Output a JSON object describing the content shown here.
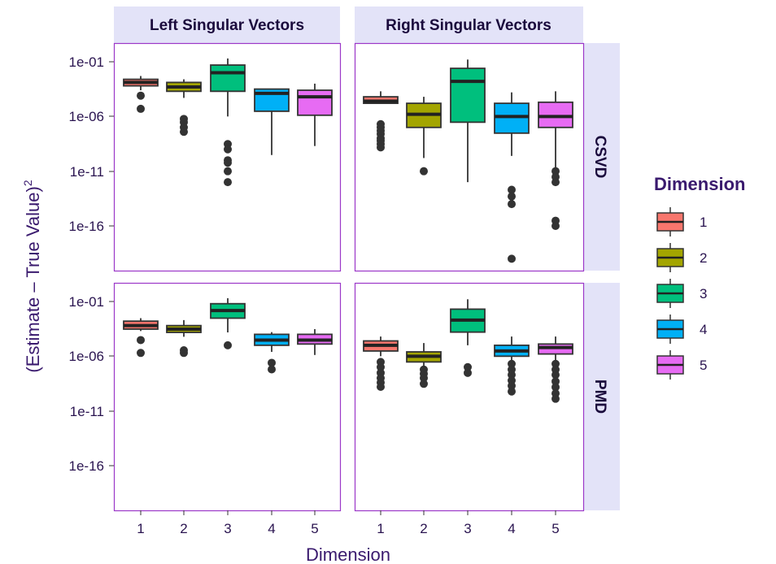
{
  "chart_data": {
    "type": "boxplot",
    "xlabel": "Dimension",
    "ylabel": "(Estimate – True Value)",
    "ylabel_superscript": "2",
    "y_scale": "log10",
    "ylim": [
      1e-20,
      0.2
    ],
    "y_ticks": [
      {
        "value": 0.1,
        "label": "1e-01"
      },
      {
        "value": 1e-06,
        "label": "1e-06"
      },
      {
        "value": 1e-11,
        "label": "1e-11"
      },
      {
        "value": 1e-16,
        "label": "1e-16"
      }
    ],
    "categories": [
      "1",
      "2",
      "3",
      "4",
      "5"
    ],
    "legend": {
      "title": "Dimension",
      "position": "right",
      "entries": [
        {
          "label": "1",
          "color": "#F8766D"
        },
        {
          "label": "2",
          "color": "#A3A500"
        },
        {
          "label": "3",
          "color": "#00BF7D"
        },
        {
          "label": "4",
          "color": "#00B0F6"
        },
        {
          "label": "5",
          "color": "#E76BF3"
        }
      ]
    },
    "column_facets": [
      "Left Singular Vectors",
      "Right Singular Vectors"
    ],
    "row_facets": [
      "CSVD",
      "PMD"
    ],
    "panels": [
      {
        "row": "CSVD",
        "col": "Left Singular Vectors",
        "boxes": [
          {
            "dim": "1",
            "whisker_low": 0.00025,
            "q1": 0.00063,
            "median": 0.0013,
            "q3": 0.0025,
            "whisker_high": 0.005,
            "outliers": [
              8e-05,
              5e-06
            ]
          },
          {
            "dim": "2",
            "whisker_low": 5e-05,
            "q1": 0.0002,
            "median": 0.0005,
            "q3": 0.0013,
            "whisker_high": 0.0025,
            "outliers": [
              6e-07,
              3e-07,
              1e-07,
              4e-08
            ]
          },
          {
            "dim": "3",
            "whisker_low": 1e-06,
            "q1": 0.0002,
            "median": 0.01,
            "q3": 0.05,
            "whisker_high": 0.2,
            "outliers": [
              3e-09,
              1e-09,
              1e-10,
              6e-11,
              1e-11,
              1e-12
            ]
          },
          {
            "dim": "4",
            "whisker_low": 3e-10,
            "q1": 3e-06,
            "median": 0.00013,
            "q3": 0.00032,
            "whisker_high": 0.00032,
            "outliers": []
          },
          {
            "dim": "5",
            "whisker_low": 2e-09,
            "q1": 1.3e-06,
            "median": 6.3e-05,
            "q3": 0.00025,
            "whisker_high": 0.001,
            "outliers": []
          }
        ]
      },
      {
        "row": "CSVD",
        "col": "Right Singular Vectors",
        "boxes": [
          {
            "dim": "1",
            "whisker_low": 1.6e-05,
            "q1": 1.6e-05,
            "median": 2.5e-05,
            "q3": 6.3e-05,
            "whisker_high": 0.0002,
            "outliers": [
              2e-07,
              1e-07,
              5e-08,
              2.5e-08,
              1e-08,
              6e-09,
              3e-09,
              1.5e-09
            ]
          },
          {
            "dim": "2",
            "whisker_low": 1.6e-10,
            "q1": 1e-07,
            "median": 1.6e-06,
            "q3": 1.6e-05,
            "whisker_high": 6.3e-05,
            "outliers": [
              1e-11
            ]
          },
          {
            "dim": "3",
            "whisker_low": 1e-12,
            "q1": 3e-07,
            "median": 0.0016,
            "q3": 0.025,
            "whisker_high": 0.16,
            "outliers": []
          },
          {
            "dim": "4",
            "whisker_low": 2.5e-10,
            "q1": 3e-08,
            "median": 1e-06,
            "q3": 1.6e-05,
            "whisker_high": 0.00016,
            "outliers": [
              2e-13,
              5e-14,
              1e-14,
              1e-19
            ]
          },
          {
            "dim": "5",
            "whisker_low": 1e-11,
            "q1": 1e-07,
            "median": 1e-06,
            "q3": 2e-05,
            "whisker_high": 0.0002,
            "outliers": [
              1e-11,
              3e-12,
              1e-12,
              3e-16,
              1e-16
            ]
          }
        ]
      },
      {
        "row": "PMD",
        "col": "Left Singular Vectors",
        "boxes": [
          {
            "dim": "1",
            "whisker_low": 0.0002,
            "q1": 0.0003,
            "median": 0.00063,
            "q3": 0.0016,
            "whisker_high": 0.003,
            "outliers": [
              3e-05,
              2e-06
            ]
          },
          {
            "dim": "2",
            "whisker_low": 6e-05,
            "q1": 0.00015,
            "median": 0.0003,
            "q3": 0.00063,
            "whisker_high": 0.002,
            "outliers": [
              3.5e-06,
              2e-06
            ]
          },
          {
            "dim": "3",
            "whisker_low": 0.00015,
            "q1": 0.003,
            "median": 0.015,
            "q3": 0.063,
            "whisker_high": 0.2,
            "outliers": [
              1e-05
            ]
          },
          {
            "dim": "4",
            "whisker_low": 2.5e-06,
            "q1": 1e-05,
            "median": 3e-05,
            "q3": 0.0001,
            "whisker_high": 0.00016,
            "outliers": [
              2.5e-07,
              6.3e-08
            ]
          },
          {
            "dim": "5",
            "whisker_low": 1.3e-06,
            "q1": 1.3e-05,
            "median": 3e-05,
            "q3": 0.0001,
            "whisker_high": 0.0003,
            "outliers": []
          }
        ]
      },
      {
        "row": "PMD",
        "col": "Right Singular Vectors",
        "boxes": [
          {
            "dim": "1",
            "whisker_low": 1e-06,
            "q1": 3e-06,
            "median": 1e-05,
            "q3": 2.5e-05,
            "whisker_high": 6.3e-05,
            "outliers": [
              3e-07,
              1e-07,
              3e-08,
              1e-08,
              4e-09,
              1.6e-09
            ]
          },
          {
            "dim": "2",
            "whisker_low": 1e-07,
            "q1": 3e-07,
            "median": 1e-06,
            "q3": 2.5e-06,
            "whisker_high": 1.6e-05,
            "outliers": [
              6e-08,
              2.5e-08,
              1e-08,
              3e-09
            ]
          },
          {
            "dim": "3",
            "whisker_low": 1e-05,
            "q1": 0.00016,
            "median": 0.002,
            "q3": 0.02,
            "whisker_high": 0.16,
            "outliers": [
              1e-07,
              3e-08
            ]
          },
          {
            "dim": "4",
            "whisker_low": 3e-07,
            "q1": 1e-06,
            "median": 3e-06,
            "q3": 1e-05,
            "whisker_high": 6.3e-05,
            "outliers": [
              2e-07,
              6e-08,
              2e-08,
              6e-09,
              2e-09,
              6e-10
            ]
          },
          {
            "dim": "5",
            "whisker_low": 3e-07,
            "q1": 1.6e-06,
            "median": 6.3e-06,
            "q3": 1.3e-05,
            "whisker_high": 6.3e-05,
            "outliers": [
              2e-07,
              6e-08,
              2e-08,
              5e-09,
              1.5e-09,
              4e-10,
              1.3e-10
            ]
          }
        ]
      }
    ]
  }
}
